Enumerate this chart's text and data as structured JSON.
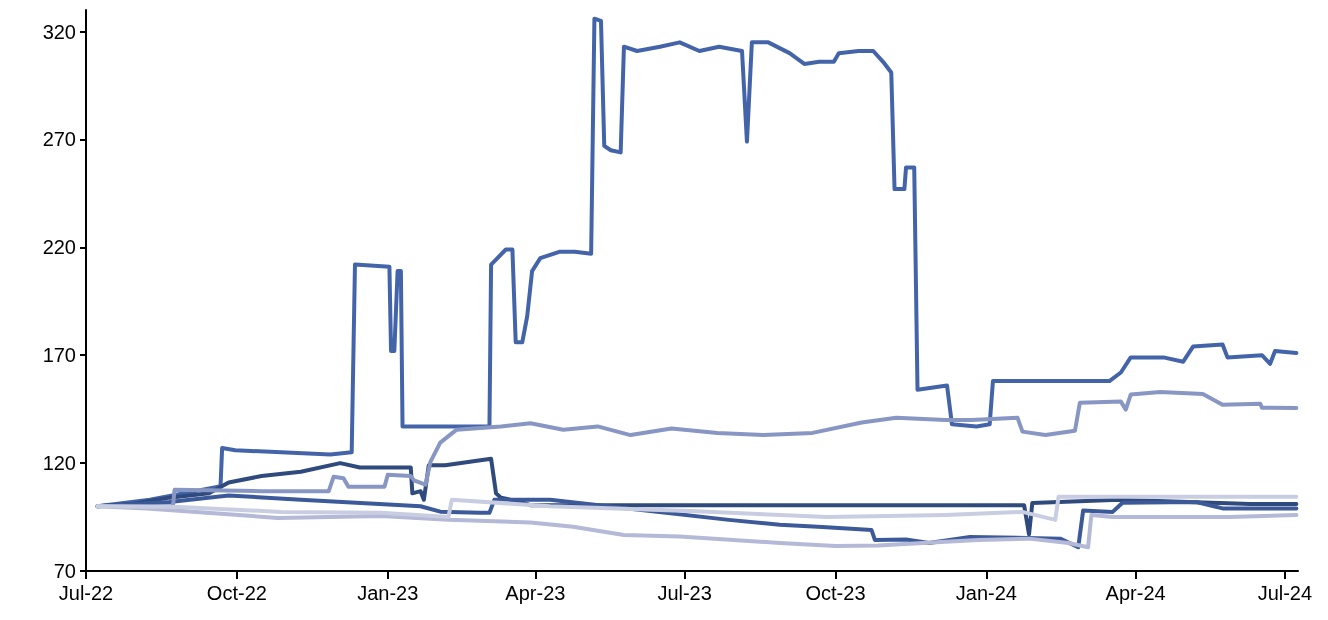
{
  "chart_data": {
    "type": "line",
    "grid": false,
    "marker": "none",
    "line_style": "solid",
    "xlim": [
      "2022-07-01",
      "2024-07-09"
    ],
    "xticks": [
      {
        "value": "2022-07-01",
        "label": "Jul-22"
      },
      {
        "value": "2022-10-01",
        "label": "Oct-22"
      },
      {
        "value": "2023-01-01",
        "label": "Jan-23"
      },
      {
        "value": "2023-04-01",
        "label": "Apr-23"
      },
      {
        "value": "2023-07-01",
        "label": "Jul-23"
      },
      {
        "value": "2023-10-01",
        "label": "Oct-23"
      },
      {
        "value": "2024-01-01",
        "label": "Jan-24"
      },
      {
        "value": "2024-04-01",
        "label": "Apr-24"
      },
      {
        "value": "2024-07-01",
        "label": "Jul-24"
      }
    ],
    "ylim": [
      70,
      330
    ],
    "yticks": [
      70,
      120,
      170,
      220,
      270,
      320
    ],
    "series": [
      {
        "color": "#4464aa",
        "x": [
          "2022-07-08",
          "2022-08-09",
          "2022-09-19",
          "2022-09-21",
          "2022-09-22",
          "2022-09-30",
          "2022-10-28",
          "2022-11-27",
          "2022-12-10",
          "2022-12-12",
          "2023-01-02",
          "2023-01-03",
          "2023-01-05",
          "2023-01-07",
          "2023-01-09",
          "2023-01-10",
          "2023-02-08",
          "2023-03-04",
          "2023-03-05",
          "2023-03-14",
          "2023-03-18",
          "2023-03-20",
          "2023-03-24",
          "2023-03-27",
          "2023-03-30",
          "2023-04-04",
          "2023-04-16",
          "2023-04-25",
          "2023-05-05",
          "2023-05-07",
          "2023-05-11",
          "2023-05-13",
          "2023-05-17",
          "2023-05-23",
          "2023-05-25",
          "2023-06-02",
          "2023-06-16",
          "2023-06-28",
          "2023-07-10",
          "2023-07-22",
          "2023-08-05",
          "2023-08-08",
          "2023-08-11",
          "2023-08-21",
          "2023-09-03",
          "2023-09-12",
          "2023-09-21",
          "2023-09-30",
          "2023-10-03",
          "2023-10-15",
          "2023-10-24",
          "2023-10-30",
          "2023-11-04",
          "2023-11-06",
          "2023-11-12",
          "2023-11-13",
          "2023-11-18",
          "2023-11-20",
          "2023-12-08",
          "2023-12-11",
          "2023-12-26",
          "2024-01-03",
          "2024-01-05",
          "2024-01-27",
          "2024-02-26",
          "2024-03-16",
          "2024-03-23",
          "2024-03-29",
          "2024-04-18",
          "2024-04-30",
          "2024-05-06",
          "2024-05-24",
          "2024-05-27",
          "2024-06-17",
          "2024-06-22",
          "2024-06-25",
          "2024-07-08"
        ],
        "values": [
          100,
          103,
          109,
          109,
          127,
          126,
          125,
          124,
          125,
          212,
          211,
          172,
          172,
          209,
          209,
          137,
          137,
          137,
          212,
          219,
          219,
          176,
          176,
          188,
          209,
          215,
          218,
          218,
          217,
          326,
          325,
          267,
          265,
          264,
          313,
          311,
          313,
          315,
          311,
          313,
          311,
          269,
          315,
          315,
          310,
          305,
          306,
          306,
          310,
          311,
          311,
          306,
          301,
          247,
          247,
          257,
          257,
          154,
          156,
          138,
          137,
          138,
          158,
          158,
          158,
          158,
          162,
          169,
          169,
          167,
          174,
          175,
          169,
          170,
          166,
          172,
          171
        ]
      },
      {
        "color": "#2f4a7c",
        "x": [
          "2022-07-08",
          "2022-07-28",
          "2022-08-21",
          "2022-09-14",
          "2022-09-26",
          "2022-10-16",
          "2022-11-09",
          "2022-12-03",
          "2022-12-15",
          "2023-01-15",
          "2023-01-16",
          "2023-01-21",
          "2023-01-23",
          "2023-01-26",
          "2023-02-05",
          "2023-03-05",
          "2023-03-08",
          "2023-03-11",
          "2023-03-23",
          "2023-03-29",
          "2024-01-24",
          "2024-01-27",
          "2024-01-29",
          "2024-03-22",
          "2024-06-10",
          "2024-07-08"
        ],
        "values": [
          100,
          101,
          104,
          106,
          111,
          114,
          116,
          120,
          118,
          118,
          106,
          107,
          103,
          119,
          119,
          122,
          106,
          104,
          102,
          100.5,
          100.5,
          87,
          101.5,
          103,
          101,
          101
        ]
      },
      {
        "color": "#3c5a9a",
        "x": [
          "2022-07-08",
          "2022-08-21",
          "2022-09-26",
          "2022-11-09",
          "2023-01-21",
          "2023-02-02",
          "2023-02-26",
          "2023-03-04",
          "2023-03-07",
          "2023-04-10",
          "2023-07-28",
          "2023-08-28",
          "2023-09-23",
          "2023-10-23",
          "2023-10-25",
          "2023-11-13",
          "2023-11-27",
          "2023-12-22",
          "2024-02-15",
          "2024-02-26",
          "2024-02-29",
          "2024-03-18",
          "2024-03-24",
          "2024-05-08",
          "2024-05-24",
          "2024-07-08"
        ],
        "values": [
          100,
          102,
          105,
          103,
          100,
          97.5,
          97,
          97,
          103,
          103,
          93.7,
          91.4,
          90.4,
          89,
          84.4,
          84.6,
          83,
          85.8,
          85,
          81,
          98,
          97.4,
          101.6,
          102,
          99,
          99
        ]
      },
      {
        "color": "#8896c4",
        "x": [
          "2022-07-08",
          "2022-08-23",
          "2022-08-24",
          "2022-10-16",
          "2022-11-26",
          "2022-11-29",
          "2022-12-05",
          "2022-12-08",
          "2022-12-30",
          "2023-01-01",
          "2023-01-15",
          "2023-01-17",
          "2023-01-24",
          "2023-01-27",
          "2023-02-02",
          "2023-02-12",
          "2023-03-11",
          "2023-03-29",
          "2023-04-18",
          "2023-05-09",
          "2023-05-29",
          "2023-06-23",
          "2023-07-21",
          "2023-08-18",
          "2023-09-17",
          "2023-10-17",
          "2023-11-07",
          "2023-12-07",
          "2023-12-23",
          "2024-01-20",
          "2024-01-23",
          "2024-02-06",
          "2024-02-24",
          "2024-02-27",
          "2024-03-23",
          "2024-03-26",
          "2024-03-29",
          "2024-04-16",
          "2024-05-12",
          "2024-05-24",
          "2024-06-16",
          "2024-06-17",
          "2024-07-08"
        ],
        "values": [
          100,
          100,
          107.6,
          107,
          107,
          113.7,
          113,
          109,
          109,
          114.6,
          114,
          112,
          110,
          120.6,
          129.5,
          135.5,
          137,
          138.5,
          135.5,
          137,
          133,
          136,
          134,
          133,
          134,
          138.8,
          141,
          140,
          140,
          141,
          134.6,
          133,
          135,
          148,
          148.5,
          144.8,
          151.8,
          153,
          152,
          147,
          147.5,
          145.7,
          145.5
        ]
      },
      {
        "color": "#b3b9d6",
        "x": [
          "2022-07-08",
          "2022-08-07",
          "2022-10-26",
          "2022-12-28",
          "2023-02-07",
          "2023-03-29",
          "2023-04-24",
          "2023-05-25",
          "2023-06-28",
          "2023-08-28",
          "2023-10-01",
          "2023-10-27",
          "2023-12-07",
          "2023-12-27",
          "2024-01-27",
          "2024-02-20",
          "2024-03-03",
          "2024-03-05",
          "2024-03-18",
          "2024-05-28",
          "2024-07-08"
        ],
        "values": [
          100,
          99,
          94.6,
          95.5,
          93.7,
          92.5,
          90.5,
          86.7,
          86,
          83,
          81.6,
          81.8,
          83.5,
          84.4,
          85,
          83,
          81,
          96,
          95,
          95,
          96
        ]
      },
      {
        "color": "#c9cde1",
        "x": [
          "2022-07-08",
          "2022-08-27",
          "2022-10-28",
          "2022-12-28",
          "2023-02-07",
          "2023-02-09",
          "2023-04-10",
          "2023-07-08",
          "2023-09-26",
          "2023-12-07",
          "2024-01-23",
          "2024-02-12",
          "2024-02-14",
          "2024-07-08"
        ],
        "values": [
          100,
          99.7,
          97.4,
          97,
          95,
          103,
          100,
          97.7,
          95,
          96,
          97.4,
          93.7,
          104.4,
          104.4
        ]
      }
    ]
  }
}
